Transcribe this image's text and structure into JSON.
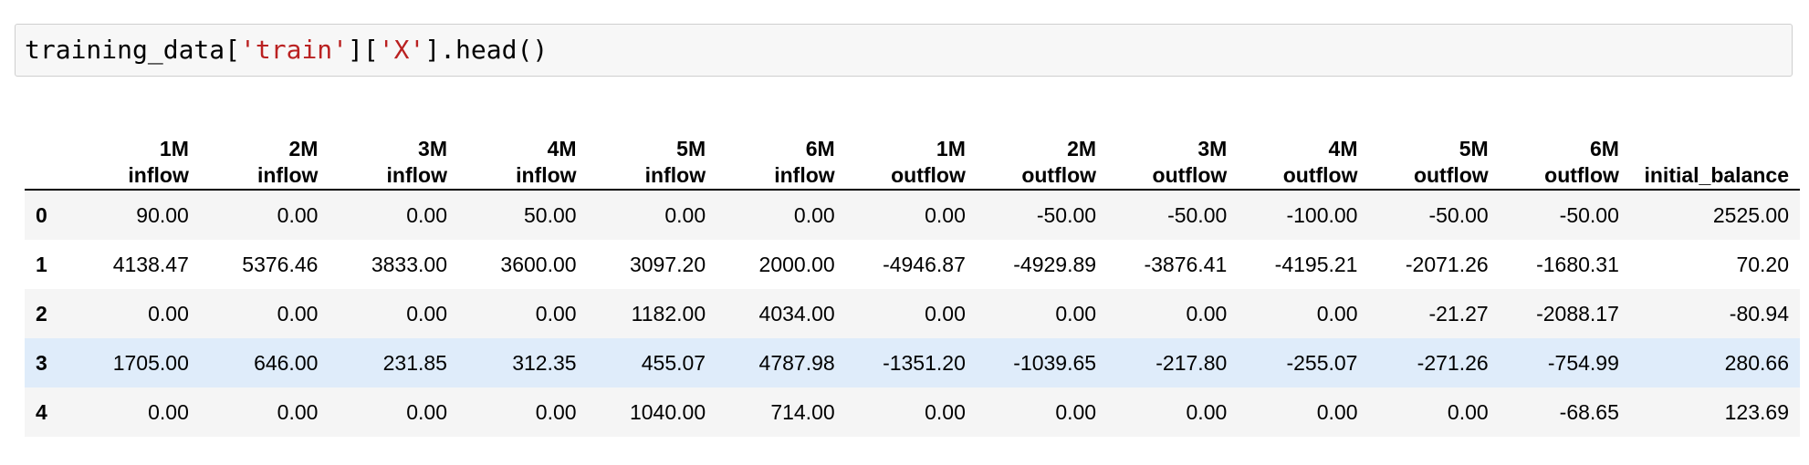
{
  "input": {
    "prefix": "training_data[",
    "key1": "'train'",
    "mid": "][",
    "key2": "'X'",
    "suffix": "].head()"
  },
  "table": {
    "columns": [
      "1M\ninflow",
      "2M\ninflow",
      "3M\ninflow",
      "4M\ninflow",
      "5M\ninflow",
      "6M\ninflow",
      "1M\noutflow",
      "2M\noutflow",
      "3M\noutflow",
      "4M\noutflow",
      "5M\noutflow",
      "6M\noutflow",
      "initial_balance"
    ],
    "rows": [
      {
        "index": "0",
        "values": [
          "90.00",
          "0.00",
          "0.00",
          "50.00",
          "0.00",
          "0.00",
          "0.00",
          "-50.00",
          "-50.00",
          "-100.00",
          "-50.00",
          "-50.00",
          "2525.00"
        ]
      },
      {
        "index": "1",
        "values": [
          "4138.47",
          "5376.46",
          "3833.00",
          "3600.00",
          "3097.20",
          "2000.00",
          "-4946.87",
          "-4929.89",
          "-3876.41",
          "-4195.21",
          "-2071.26",
          "-1680.31",
          "70.20"
        ]
      },
      {
        "index": "2",
        "values": [
          "0.00",
          "0.00",
          "0.00",
          "0.00",
          "1182.00",
          "4034.00",
          "0.00",
          "0.00",
          "0.00",
          "0.00",
          "-21.27",
          "-2088.17",
          "-80.94"
        ]
      },
      {
        "index": "3",
        "values": [
          "1705.00",
          "646.00",
          "231.85",
          "312.35",
          "455.07",
          "4787.98",
          "-1351.20",
          "-1039.65",
          "-217.80",
          "-255.07",
          "-271.26",
          "-754.99",
          "280.66"
        ]
      },
      {
        "index": "4",
        "values": [
          "0.00",
          "0.00",
          "0.00",
          "0.00",
          "1040.00",
          "714.00",
          "0.00",
          "0.00",
          "0.00",
          "0.00",
          "0.00",
          "-68.65",
          "123.69"
        ]
      }
    ],
    "hovered_row": "3"
  },
  "colors": {
    "string_token": "#ba2121",
    "row_stripe": "#f5f5f5",
    "row_hover": "#dfecfa"
  }
}
